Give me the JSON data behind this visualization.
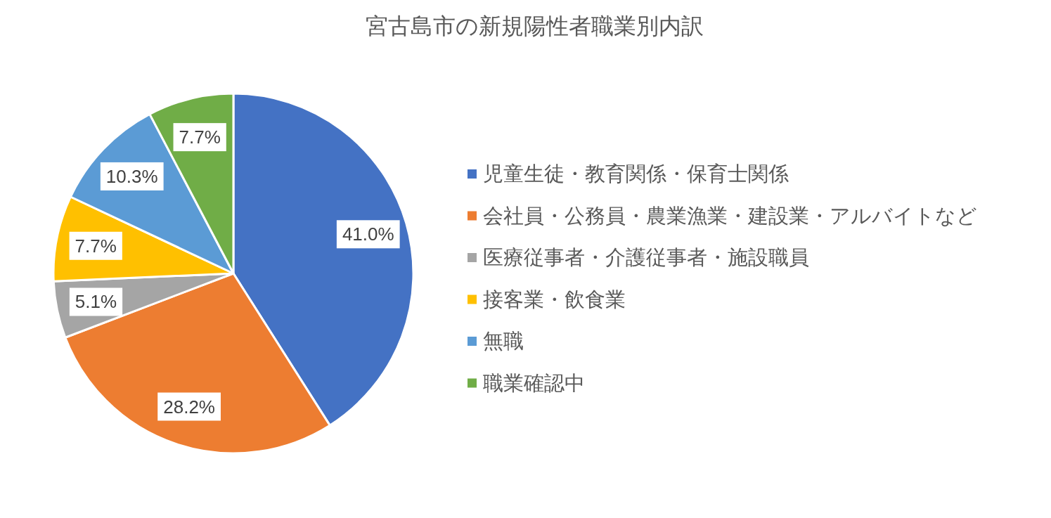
{
  "chart_data": {
    "type": "pie",
    "title": "宮古島市の新規陽性者職業別内訳",
    "categories": [
      "児童生徒・教育関係・保育士関係",
      "会社員・公務員・農業漁業・建設業・アルバイトなど",
      "医療従事者・介護従事者・施設職員",
      "接客業・飲食業",
      "無職",
      "職業確認中"
    ],
    "values": [
      41.0,
      28.2,
      5.1,
      7.7,
      10.3,
      7.7
    ],
    "value_labels": [
      "41.0%",
      "28.2%",
      "5.1%",
      "7.7%",
      "10.3%",
      "7.7%"
    ],
    "colors": [
      "#4472c4",
      "#ed7d31",
      "#a5a5a5",
      "#ffc000",
      "#5b9bd5",
      "#70ad47"
    ],
    "legend": "right"
  }
}
